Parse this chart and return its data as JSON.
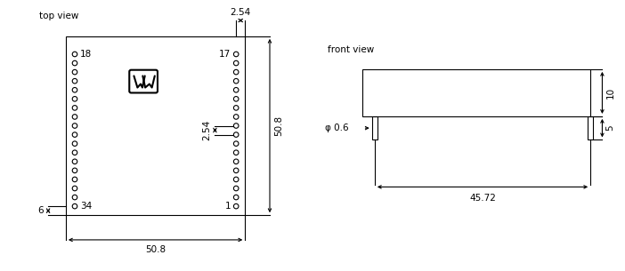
{
  "top_view_label": "top view",
  "front_view_label": "front view",
  "n_pins": 18,
  "dim_2_54_top": "2.54",
  "dim_2_54_inner": "2.54",
  "dim_50_8_bottom": "50.8",
  "dim_50_8_right": "50.8",
  "dim_6": "6",
  "front_dim_10": "10",
  "front_dim_5": "5",
  "front_dim_45_72": "45.72",
  "front_dim_phi": "φ 0.6",
  "pin_label_18": "18",
  "pin_label_17": "17",
  "pin_label_34": "34",
  "pin_label_1": "1",
  "color": "black",
  "lw": 0.8,
  "fs": 7.5
}
